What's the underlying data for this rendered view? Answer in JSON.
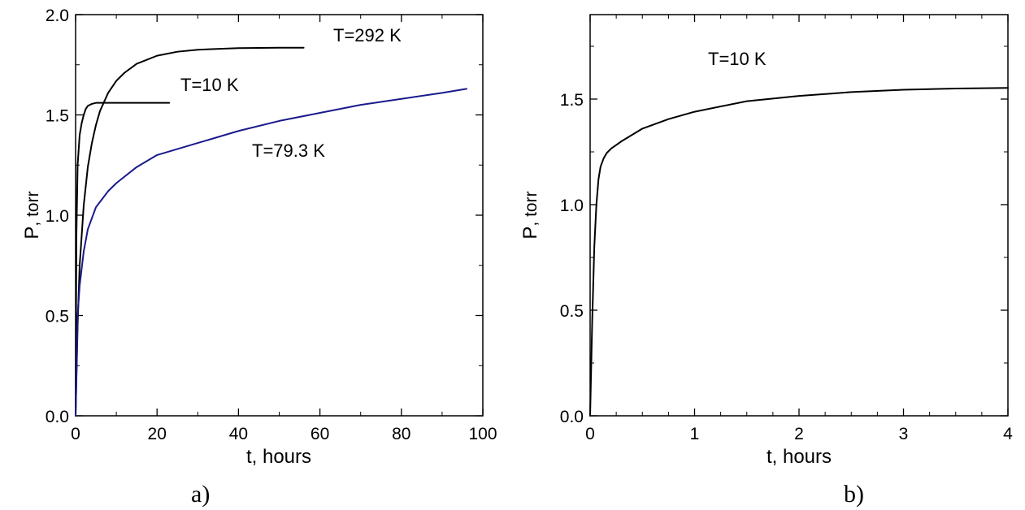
{
  "chart_data": [
    {
      "type": "line",
      "panel_label": "a)",
      "xlabel": "t, hours",
      "ylabel_main": "P",
      "ylabel_sub": ", torr",
      "xlim": [
        0,
        100
      ],
      "ylim": [
        0,
        2.0
      ],
      "xticks": [
        0,
        20,
        40,
        60,
        80,
        100
      ],
      "xtick_labels": [
        "0",
        "20",
        "40",
        "60",
        "80",
        "100"
      ],
      "yticks": [
        0,
        0.5,
        1.0,
        1.5,
        2.0
      ],
      "ytick_labels": [
        "0.0",
        "0.5",
        "1.0",
        "1.5",
        "2.0"
      ],
      "grid": false,
      "series": [
        {
          "name": "T=292 K",
          "color": "#000000",
          "x": [
            0,
            0.5,
            1,
            2,
            3,
            4,
            5,
            6,
            8,
            10,
            12,
            15,
            20,
            25,
            30,
            40,
            50,
            56
          ],
          "y": [
            0,
            0.45,
            0.75,
            1.05,
            1.24,
            1.36,
            1.45,
            1.52,
            1.61,
            1.67,
            1.71,
            1.755,
            1.795,
            1.815,
            1.825,
            1.833,
            1.835,
            1.835
          ]
        },
        {
          "name": "T=10 K",
          "color": "#000000",
          "x": [
            0,
            0.2,
            0.5,
            1,
            1.5,
            2,
            2.5,
            3,
            4,
            5,
            10,
            15,
            20,
            23
          ],
          "y": [
            0,
            0.9,
            1.25,
            1.4,
            1.46,
            1.5,
            1.53,
            1.545,
            1.555,
            1.56,
            1.56,
            1.56,
            1.56,
            1.56
          ]
        },
        {
          "name": "T=79.3 K",
          "color": "#1a1a8c",
          "x": [
            0,
            0.5,
            1,
            2,
            3,
            5,
            8,
            10,
            15,
            20,
            30,
            40,
            50,
            60,
            70,
            80,
            90,
            96
          ],
          "y": [
            0,
            0.5,
            0.65,
            0.82,
            0.93,
            1.04,
            1.12,
            1.16,
            1.24,
            1.3,
            1.36,
            1.42,
            1.47,
            1.51,
            1.55,
            1.58,
            1.61,
            1.63
          ]
        }
      ],
      "annotations": [
        "T=292 K",
        "T=10 K",
        "T=79.3 K"
      ]
    },
    {
      "type": "line",
      "panel_label": "b)",
      "xlabel": "t, hours",
      "ylabel_main": "P",
      "ylabel_sub": ", torr",
      "xlim": [
        0,
        4
      ],
      "ylim": [
        0,
        1.9
      ],
      "xticks": [
        0,
        1,
        2,
        3,
        4
      ],
      "xtick_labels": [
        "0",
        "1",
        "2",
        "3",
        "4"
      ],
      "yticks": [
        0,
        0.5,
        1.0,
        1.5
      ],
      "ytick_labels": [
        "0.0",
        "0.5",
        "1.0",
        "1.5"
      ],
      "grid": false,
      "series": [
        {
          "name": "T=10 K",
          "color": "#000000",
          "x": [
            0,
            0.02,
            0.04,
            0.06,
            0.08,
            0.1,
            0.13,
            0.16,
            0.2,
            0.3,
            0.5,
            0.75,
            1,
            1.5,
            2,
            2.5,
            3,
            3.5,
            4
          ],
          "y": [
            0,
            0.45,
            0.8,
            1.0,
            1.12,
            1.18,
            1.22,
            1.245,
            1.265,
            1.3,
            1.36,
            1.405,
            1.44,
            1.49,
            1.515,
            1.533,
            1.544,
            1.55,
            1.553
          ]
        }
      ],
      "annotations": [
        "T=10 K"
      ]
    }
  ]
}
